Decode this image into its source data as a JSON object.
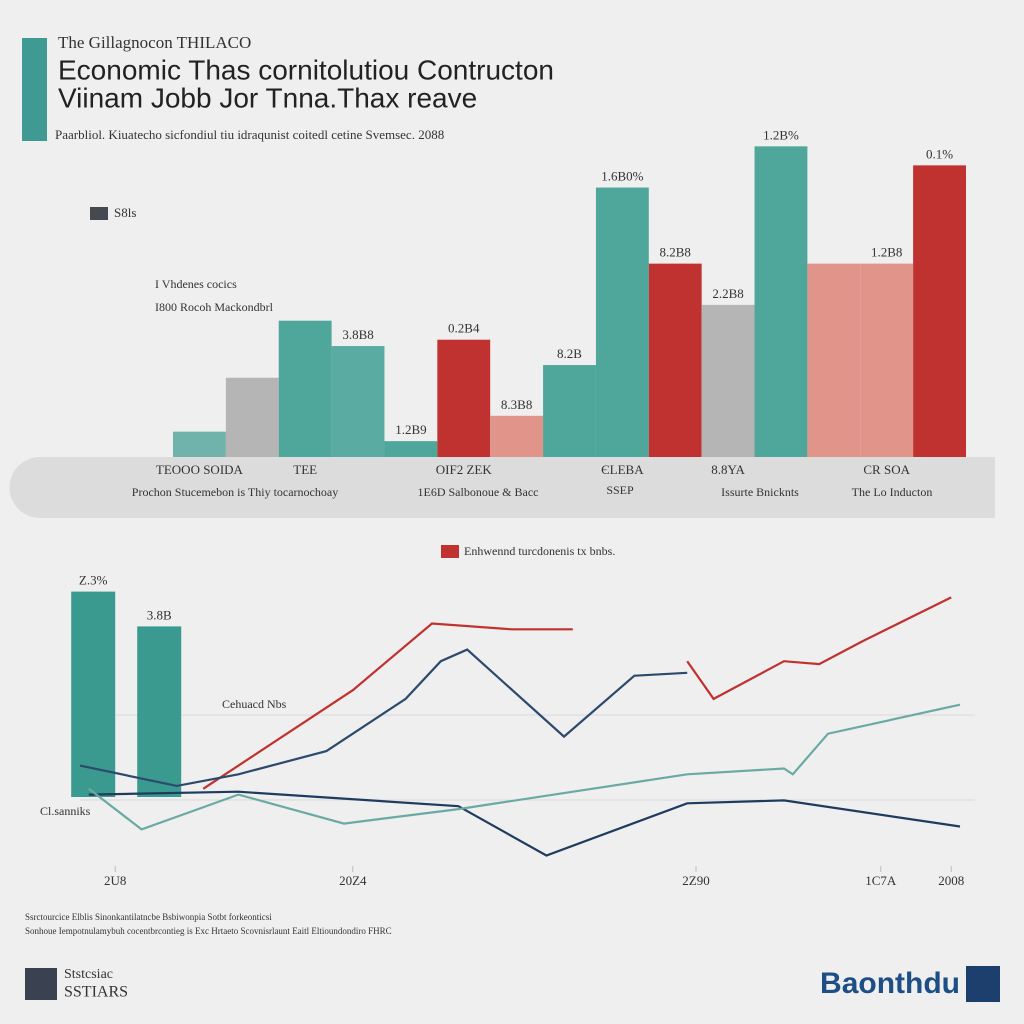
{
  "header": {
    "kicker": "The Gillagnocon THILACO",
    "title": [
      "Economic Thas cornitolutiou Contructon",
      "Viinam Jobb  Jor Tnna.Thax reave"
    ],
    "subtitle": "Paarbliol. Kiuatecho sicfondiul tiu idraqunist coitedl cetine Svemsec. 2088"
  },
  "chart_data": [
    {
      "type": "bar",
      "series": [
        {
          "name": "S8ls",
          "color": "#444a50",
          "values": [
            8,
            25,
            43,
            35,
            5,
            37,
            13,
            29,
            85,
            61,
            48,
            98,
            61,
            61,
            92
          ],
          "colors": [
            "#6fb3aa",
            "#b5b5b5",
            "#4fa79c",
            "#5aaba1",
            "#4fa79c",
            "#c0322f",
            "#e0948a",
            "#4fa79c",
            "#4fa79c",
            "#c0322f",
            "#b5b5b5",
            "#4fa79c",
            "#e0948a",
            "#e0948a",
            "#c0322f"
          ]
        }
      ],
      "categories": [
        "TEOOO SOIDA",
        null,
        "TEE",
        null,
        null,
        "OIF2 ZEK",
        null,
        null,
        "ЄLEBA",
        null,
        "8.8YA",
        null,
        null,
        "CR SOA",
        null
      ],
      "bar_notes": [
        null,
        null,
        null,
        "3.8B8",
        "1.2B9",
        "0.2B4",
        "8.3B8",
        "8.2B",
        "1.6B0%",
        "8.2B8",
        "2.2B8",
        "1.2B%",
        null,
        "1.2B8",
        "0.1%"
      ],
      "ylim": [
        0,
        100
      ],
      "annotations": [
        "I Vhdenes cocics",
        "I800 Rocoh Mackondbrl",
        "Prochon Stucemebon is  Thiy tocarnochoay",
        "1E6D Salbonoue & Bacc",
        "SSEP",
        "Issurte Bnicknts",
        "The Lo Inducton"
      ]
    },
    {
      "type": "line",
      "xlim": [
        0,
        100
      ],
      "ylim": [
        0,
        100
      ],
      "xticks": [
        {
          "value": 4,
          "label": "2U8"
        },
        {
          "value": 31,
          "label": "20Z4"
        },
        {
          "value": 70,
          "label": "2Z90"
        },
        {
          "value": 91,
          "label": "1C7A"
        },
        {
          "value": 99,
          "label": "2008"
        }
      ],
      "bars": {
        "color": "#3a9a8f",
        "x": [
          1.5,
          9
        ],
        "values": [
          96,
          84
        ],
        "notes": [
          "Z.3%",
          "3.8B"
        ]
      },
      "series": [
        {
          "name": "Enhwennd turcdonenis tx bnbs.",
          "color": "#c0322f",
          "x": [
            14,
            31,
            40,
            49,
            56,
            61,
            69,
            72,
            80,
            84,
            89,
            99
          ],
          "values": [
            28,
            62,
            85,
            83,
            83,
            null,
            72,
            59,
            72,
            71,
            79,
            94
          ]
        },
        {
          "color": "#2c4a6b",
          "x": [
            0,
            11,
            18,
            28,
            37,
            41,
            44,
            55,
            63,
            69
          ],
          "values": [
            36,
            29,
            33,
            41,
            59,
            72,
            76,
            46,
            67,
            68
          ]
        },
        {
          "color": "#1f3c5e",
          "x": [
            1,
            18,
            43,
            53,
            69,
            80,
            100
          ],
          "values": [
            26,
            27,
            22,
            5,
            23,
            24,
            15
          ]
        },
        {
          "color": "#6aaaa3",
          "x": [
            1,
            7,
            18,
            30,
            43,
            69,
            80,
            81,
            85,
            100
          ],
          "values": [
            28,
            14,
            26,
            16,
            21,
            33,
            35,
            33,
            47,
            57
          ]
        }
      ],
      "annotations": [
        "Cl.sanniks",
        "Cehuacd Nbs"
      ]
    }
  ],
  "footer": {
    "notes": [
      "Ssrctourcice Elblis Sinonkantilatncbe Bsbiwonpia Sotbt forkeonticsi",
      "Sonhoue Iempotnulamybuh cocentbrcontieg is Exc Hrtaeto Scovnisrlaunt Eaitl Eltioundondiro FHRC"
    ],
    "org": [
      "Ststcsiac",
      "SSTIARS"
    ],
    "brand": "Baonthdu"
  }
}
